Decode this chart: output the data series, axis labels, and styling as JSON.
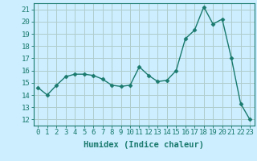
{
  "x": [
    0,
    1,
    2,
    3,
    4,
    5,
    6,
    7,
    8,
    9,
    10,
    11,
    12,
    13,
    14,
    15,
    16,
    17,
    18,
    19,
    20,
    21,
    22,
    23
  ],
  "y": [
    14.6,
    14.0,
    14.8,
    15.5,
    15.7,
    15.7,
    15.6,
    15.3,
    14.8,
    14.7,
    14.8,
    16.3,
    15.6,
    15.1,
    15.2,
    16.0,
    18.6,
    19.3,
    21.2,
    19.8,
    20.2,
    17.0,
    13.3,
    12.0
  ],
  "line_color": "#1a7a6e",
  "marker": "D",
  "marker_size": 2.5,
  "bg_color": "#cceeff",
  "grid_color": "#b0cccc",
  "xlabel": "Humidex (Indice chaleur)",
  "xlim": [
    -0.5,
    23.5
  ],
  "ylim": [
    11.5,
    21.5
  ],
  "yticks": [
    12,
    13,
    14,
    15,
    16,
    17,
    18,
    19,
    20,
    21
  ],
  "xticks": [
    0,
    1,
    2,
    3,
    4,
    5,
    6,
    7,
    8,
    9,
    10,
    11,
    12,
    13,
    14,
    15,
    16,
    17,
    18,
    19,
    20,
    21,
    22,
    23
  ],
  "tick_color": "#1a7a6e",
  "label_fontsize": 6.5,
  "axis_fontsize": 7.5
}
